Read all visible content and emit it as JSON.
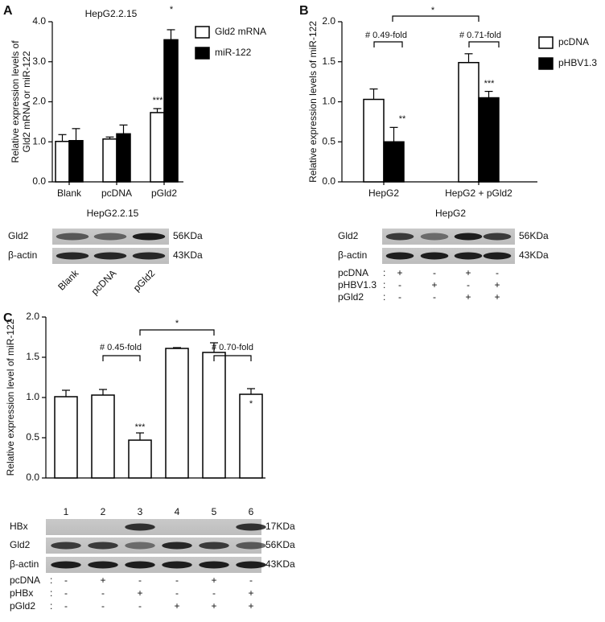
{
  "chart_data": [
    {
      "type": "bar",
      "label": "A",
      "title": "HepG2.2.15",
      "y_label": [
        "Relative expression levels of",
        "Gld2 mRNA or miR-122"
      ],
      "categories": [
        "Blank",
        "pcDNA",
        "pGld2"
      ],
      "series": [
        {
          "name": "Gld2 mRNA",
          "color": "#ffffff",
          "values": [
            1.01,
            1.07,
            1.73
          ],
          "errors": [
            0.17,
            0.05,
            0.1
          ]
        },
        {
          "name": "miR-122",
          "color": "#000000",
          "values": [
            1.03,
            1.2,
            3.55
          ],
          "errors": [
            0.3,
            0.22,
            0.25
          ]
        }
      ],
      "ylim": [
        0,
        4
      ],
      "yticks": [
        {
          "value": 0,
          "label": "0.0"
        },
        {
          "value": 1,
          "label": "1.0"
        },
        {
          "value": 2,
          "label": "2.0"
        },
        {
          "value": 3,
          "label": "3.0"
        },
        {
          "value": 4,
          "label": "4.0"
        }
      ],
      "annotations": [
        "***",
        "*"
      ]
    },
    {
      "type": "bar",
      "label": "B",
      "y_label": [
        "Relative expression levels of miR-122"
      ],
      "categories": [
        "HepG2",
        "HepG2 + pGld2"
      ],
      "series": [
        {
          "name": "pcDNA",
          "color": "#ffffff",
          "values": [
            1.03,
            1.49
          ],
          "errors": [
            0.13,
            0.11
          ]
        },
        {
          "name": "pHBV1.3",
          "color": "#000000",
          "values": [
            0.5,
            1.05
          ],
          "errors": [
            0.18,
            0.08
          ]
        }
      ],
      "ylim": [
        0,
        2
      ],
      "yticks": [
        {
          "value": 0,
          "label": "0.0"
        },
        0.5,
        {
          "value": 1,
          "label": "1.0"
        },
        1.5,
        {
          "value": 2,
          "label": "2.0"
        }
      ],
      "annotations": [
        "**",
        "***",
        "# 0.49-fold",
        "# 0.71-fold",
        "*"
      ]
    },
    {
      "type": "bar",
      "label": "C",
      "y_label": [
        "Relative expression level of miR-122"
      ],
      "categories": [
        "1",
        "2",
        "3",
        "4",
        "5",
        "6"
      ],
      "series": [
        {
          "color": "#ffffff",
          "values": [
            1.01,
            1.03,
            0.47,
            1.61,
            1.56,
            1.04
          ],
          "errors": [
            0.08,
            0.07,
            0.09,
            0.01,
            0.12,
            0.07
          ]
        }
      ],
      "ylim": [
        0,
        2
      ],
      "yticks": [
        {
          "value": 0,
          "label": "0.0"
        },
        0.5,
        {
          "value": 1,
          "label": "1.0"
        },
        1.5,
        {
          "value": 2,
          "label": "2.0"
        }
      ],
      "annotations": [
        "***",
        "*",
        "# 0.45-fold",
        "# 0.70-fold",
        "*"
      ]
    }
  ],
  "blots": [
    {
      "title": "HepG2.2.15",
      "rows": [
        {
          "label": "Gld2",
          "size": "56KDa"
        },
        {
          "label": "β-actin",
          "size": "43KDa"
        }
      ],
      "lanes": [
        "Blank",
        "pcDNA",
        "pGld2"
      ]
    },
    {
      "title": "HepG2",
      "rows": [
        {
          "label": "Gld2",
          "size": "56KDa"
        },
        {
          "label": "β-actin",
          "size": "43KDa"
        }
      ],
      "separator": ":",
      "treatments": [
        {
          "label": "pcDNA",
          "signs": [
            "+",
            "-",
            "+",
            "-"
          ]
        },
        {
          "label": "pHBV1.3",
          "signs": [
            "-",
            "+",
            "-",
            "+"
          ]
        },
        {
          "label": "pGld2",
          "signs": [
            "-",
            "-",
            "+",
            "+"
          ]
        }
      ]
    },
    {
      "rows": [
        {
          "label": "HBx",
          "size": "17KDa"
        },
        {
          "label": "Gld2",
          "size": "56KDa"
        },
        {
          "label": "β-actin",
          "size": "43KDa"
        }
      ],
      "separator": ":",
      "treatments": [
        {
          "label": "pcDNA",
          "signs": [
            "-",
            "+",
            "-",
            "-",
            "+",
            "-"
          ]
        },
        {
          "label": "pHBx",
          "signs": [
            "-",
            "-",
            "+",
            "-",
            "-",
            "+"
          ]
        },
        {
          "label": "pGld2",
          "signs": [
            "-",
            "-",
            "-",
            "+",
            "+",
            "+"
          ]
        }
      ]
    }
  ]
}
